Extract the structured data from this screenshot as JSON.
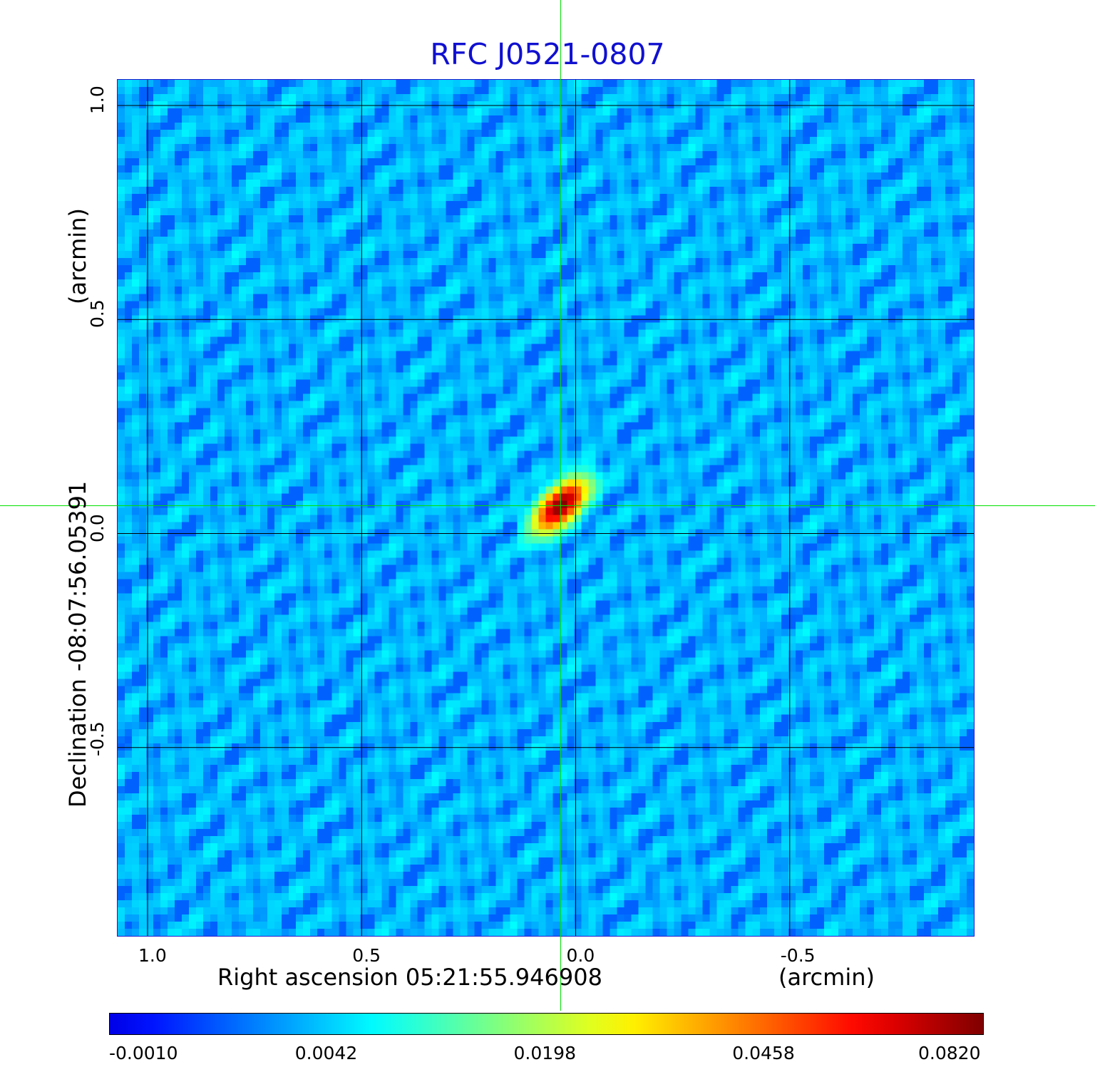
{
  "chart_data": {
    "type": "heatmap",
    "title": "RFC J0521-0807",
    "xlabel": "Right ascension  05:21:55.946908",
    "xlabel_unit": "(arcmin)",
    "ylabel": "Declination  -08:07:56.05391",
    "ylabel_unit": "(arcmin)",
    "xlim": [
      1.07,
      -0.93
    ],
    "ylim": [
      -0.94,
      1.06
    ],
    "x_ticks": [
      1.0,
      0.5,
      0.0,
      -0.5
    ],
    "x_tick_labels": [
      "1.0",
      "0.5",
      "0.0",
      "-0.5"
    ],
    "y_ticks": [
      1.0,
      0.5,
      0.0,
      -0.5
    ],
    "y_tick_labels": [
      "1.0",
      "0.5",
      "0.0",
      "-0.5"
    ],
    "grid": true,
    "colormap": "jet",
    "colorbar_ticks": [
      "-0.0010",
      "0.0042",
      "0.0198",
      "0.0458",
      "0.0820"
    ],
    "colorbar_range": [
      -0.001,
      0.082
    ],
    "background_level": 0.0,
    "source": {
      "x": 0.035,
      "y": 0.065,
      "peak": 0.082
    },
    "crosshair": {
      "x": 0.035,
      "y": 0.065,
      "color": "#00e000"
    }
  }
}
